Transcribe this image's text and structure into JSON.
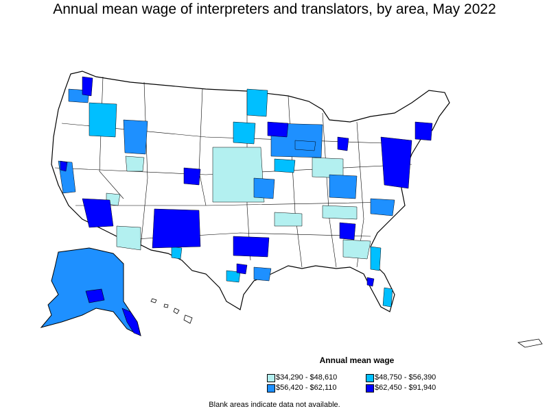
{
  "title": "Annual mean wage of interpreters and translators, by area, May 2022",
  "legend": {
    "title": "Annual mean wage",
    "items": [
      {
        "label": "$34,290 - $48,610",
        "color": "#b3f0f0"
      },
      {
        "label": "$48,750 - $56,390",
        "color": "#00bfff"
      },
      {
        "label": "$56,420 - $62,110",
        "color": "#1e90ff"
      },
      {
        "label": "$62,450 - $91,940",
        "color": "#0000ff"
      }
    ]
  },
  "note": "Blank areas indicate data not available."
}
